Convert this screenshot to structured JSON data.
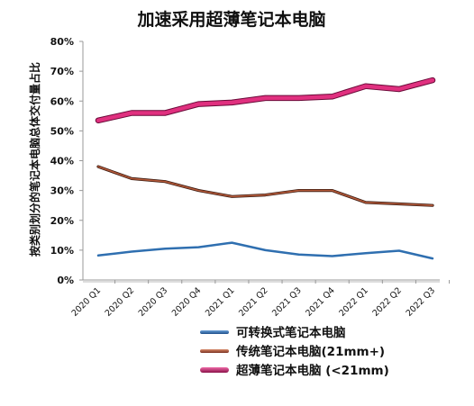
{
  "chart_data": {
    "type": "line",
    "title": "加速采用超薄笔记本电脑",
    "xlabel": "",
    "ylabel": "按类别划分的笔记本电脑总体交付量占比",
    "categories": [
      "2020 Q1",
      "2020 Q2",
      "2020 Q3",
      "2020 Q4",
      "2021 Q1",
      "2021 Q2",
      "2021 Q3",
      "2021 Q4",
      "2022 Q1",
      "2022 Q2",
      "2022 Q3"
    ],
    "yticks": [
      "0%",
      "10%",
      "20%",
      "30%",
      "40%",
      "50%",
      "60%",
      "70%",
      "80%"
    ],
    "ylim": [
      0,
      80
    ],
    "grid": false,
    "legend_position": "bottom",
    "series": [
      {
        "name": "可转换式笔记本电脑",
        "color": "#2f6fb0",
        "values": [
          8.2,
          9.5,
          10.5,
          11,
          12.5,
          10,
          8.5,
          8,
          9,
          9.8,
          7.2
        ]
      },
      {
        "name": "传统笔记本电脑(21mm+)",
        "color": "#b55a3a",
        "values": [
          38,
          34,
          33,
          30,
          28,
          28.5,
          30,
          30,
          26,
          25.5,
          25
        ]
      },
      {
        "name": "超薄笔记本电脑 (<21mm)",
        "color": "#e0307f",
        "values": [
          53.5,
          56,
          56,
          59,
          59.5,
          61,
          61,
          61.5,
          65,
          64,
          67
        ]
      }
    ]
  }
}
